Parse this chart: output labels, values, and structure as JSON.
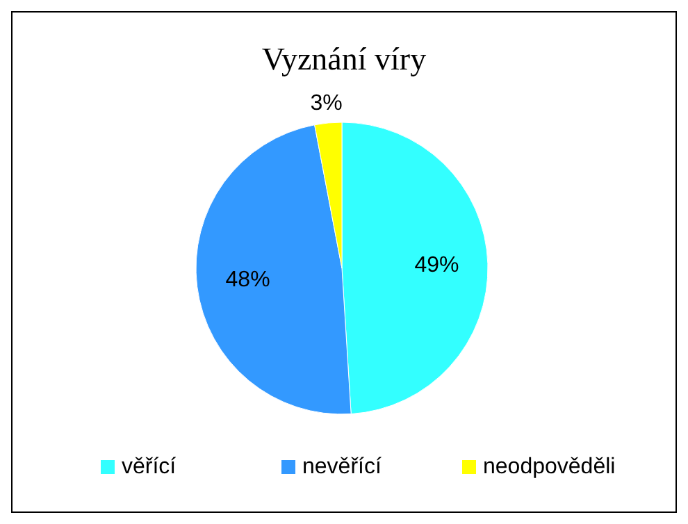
{
  "chart_data": {
    "type": "pie",
    "title": "Vyznání víry",
    "categories": [
      "věřící",
      "nevěřící",
      "neodpověděli"
    ],
    "values": [
      49,
      48,
      3
    ],
    "colors": [
      "#33ffff",
      "#3399ff",
      "#ffff00"
    ],
    "value_labels": [
      "49%",
      "48%",
      "3%"
    ],
    "legend": "bottom"
  }
}
